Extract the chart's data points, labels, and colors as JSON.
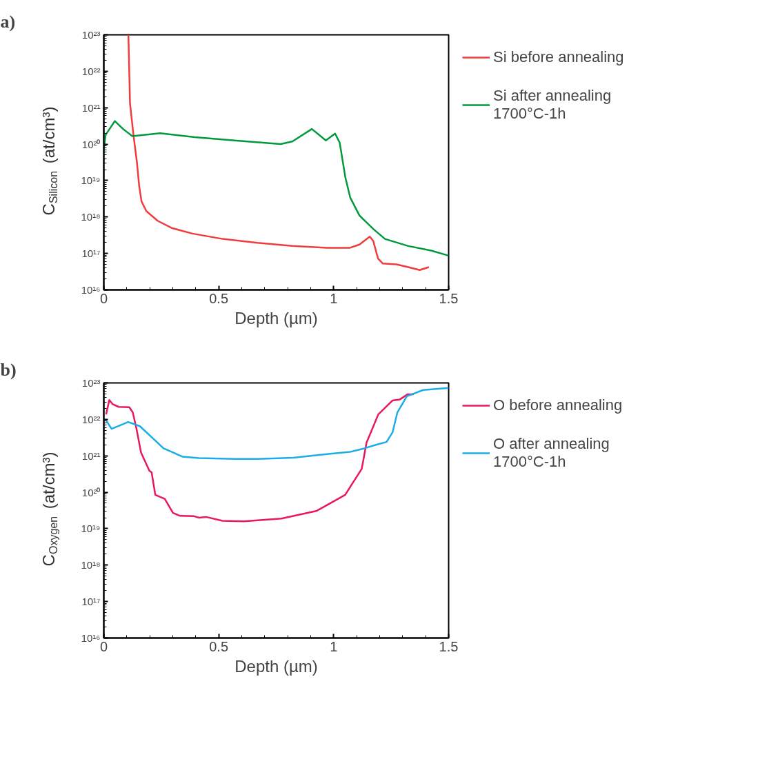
{
  "chart_data": [
    {
      "type": "line",
      "title": "a)",
      "xlabel": "Depth (µm)",
      "ylabel": "C$_{Silicon}$ (at/cm³)",
      "log": "y",
      "legend": "right",
      "grid": false,
      "xlim": [
        0,
        1.5
      ],
      "xticks": [
        0,
        0.5,
        1,
        1.5
      ],
      "ylim": [
        1e+16,
        1e+23
      ],
      "yticks": [
        {
          "value": 1e+16,
          "label": "10¹⁶"
        },
        {
          "value": 1e+17,
          "label": "10¹⁷"
        },
        {
          "value": 1e+18,
          "label": "10¹⁸"
        },
        {
          "value": 1e+19,
          "label": "10¹⁹"
        },
        {
          "value": 1e+20,
          "label": "10²⁰"
        },
        {
          "value": 1e+21,
          "label": "10²¹"
        },
        {
          "value": 1e+22,
          "label": "10²²"
        },
        {
          "value": 1e+23,
          "label": "10²³"
        }
      ],
      "series": [
        {
          "name": "Si before annealing",
          "color": "#f03c3c",
          "x": [
            0.107,
            0.114,
            0.129,
            0.144,
            0.154,
            0.164,
            0.185,
            0.235,
            0.295,
            0.386,
            0.517,
            0.668,
            0.82,
            0.971,
            1.072,
            1.112,
            1.157,
            1.172,
            1.193,
            1.213,
            1.273,
            1.324,
            1.374,
            1.414
          ],
          "values": [
            1e+23,
            1.3e+21,
            1.8e+20,
            3.2e+19,
            7e+18,
            2.7e+18,
            1.45e+18,
            7.8e+17,
            5e+17,
            3.5e+17,
            2.5e+17,
            1.95e+17,
            1.6e+17,
            1.43e+17,
            1.43e+17,
            1.75e+17,
            2.9e+17,
            2.2e+17,
            7.2e+16,
            5.3e+16,
            5e+16,
            4.2e+16,
            3.5e+16,
            4.2e+16
          ]
        },
        {
          "name": "Si after annealing\n1700°C-1h",
          "color": "#009a3c",
          "x": [
            0,
            0.008,
            0.048,
            0.084,
            0.124,
            0.245,
            0.396,
            0.568,
            0.769,
            0.82,
            0.905,
            0.966,
            1.006,
            1.026,
            1.051,
            1.072,
            1.112,
            1.172,
            1.223,
            1.324,
            1.424,
            1.5
          ],
          "values": [
            7.3e+19,
            1.8e+20,
            4.3e+20,
            2.6e+20,
            1.65e+20,
            2e+20,
            1.55e+20,
            1.26e+20,
            1e+20,
            1.18e+20,
            2.6e+20,
            1.26e+20,
            1.95e+20,
            1.1e+20,
            1.2e+19,
            3.4e+18,
            1.1e+18,
            4.7e+17,
            2.5e+17,
            1.6e+17,
            1.2e+17,
            8.7e+16
          ]
        }
      ]
    },
    {
      "type": "line",
      "title": "b)",
      "xlabel": "Depth (µm)",
      "ylabel": "C$_{Oxygen}$ (at/cm³)",
      "log": "y",
      "legend": "right",
      "grid": false,
      "xlim": [
        0,
        1.5
      ],
      "xticks": [
        0,
        0.5,
        1,
        1.5
      ],
      "ylim": [
        1e+16,
        1e+23
      ],
      "yticks": [
        {
          "value": 1e+16,
          "label": "10¹⁶"
        },
        {
          "value": 1e+17,
          "label": "10¹⁷"
        },
        {
          "value": 1e+18,
          "label": "10¹⁸"
        },
        {
          "value": 1e+19,
          "label": "10¹⁹"
        },
        {
          "value": 1e+20,
          "label": "10²⁰"
        },
        {
          "value": 1e+21,
          "label": "10²¹"
        },
        {
          "value": 1e+22,
          "label": "10²²"
        },
        {
          "value": 1e+23,
          "label": "10²³"
        }
      ],
      "series": [
        {
          "name": "O before annealing",
          "color": "#e8185c",
          "x": [
            0.01,
            0.024,
            0.039,
            0.065,
            0.111,
            0.126,
            0.142,
            0.162,
            0.198,
            0.208,
            0.224,
            0.265,
            0.301,
            0.332,
            0.393,
            0.414,
            0.445,
            0.516,
            0.609,
            0.773,
            0.927,
            1.05,
            1.122,
            1.143,
            1.194,
            1.256,
            1.287,
            1.322,
            1.348
          ],
          "values": [
            1.37e+22,
            3.4e+22,
            2.6e+22,
            2.2e+22,
            2.15e+22,
            1.55e+22,
            5.6e+21,
            1.23e+21,
            3.9e+20,
            3.5e+20,
            8.5e+19,
            6.6e+19,
            2.7e+19,
            2.25e+19,
            2.2e+19,
            2e+19,
            2.1e+19,
            1.65e+19,
            1.6e+19,
            1.9e+19,
            3.1e+19,
            8.5e+19,
            4.4e+20,
            2.3e+21,
            1.37e+22,
            3.3e+22,
            3.5e+22,
            4.9e+22,
            4.9e+22
          ]
        },
        {
          "name": "O after annealing\n1700°C-1h",
          "color": "#1aaee6",
          "x": [
            0.01,
            0.034,
            0.106,
            0.157,
            0.26,
            0.342,
            0.414,
            0.568,
            0.67,
            0.824,
            0.978,
            1.071,
            1.133,
            1.184,
            1.23,
            1.256,
            1.277,
            1.318,
            1.389,
            1.5
          ],
          "values": [
            9.4e+21,
            5.5e+21,
            8.5e+21,
            6.5e+21,
            1.6e+21,
            9.5e+20,
            8.7e+20,
            8.2e+20,
            8.2e+20,
            8.9e+20,
            1.12e+21,
            1.28e+21,
            1.6e+21,
            2e+21,
            2.4e+21,
            4.4e+21,
            1.55e+22,
            4.3e+22,
            6.4e+22,
            7.3e+22
          ]
        }
      ]
    }
  ]
}
